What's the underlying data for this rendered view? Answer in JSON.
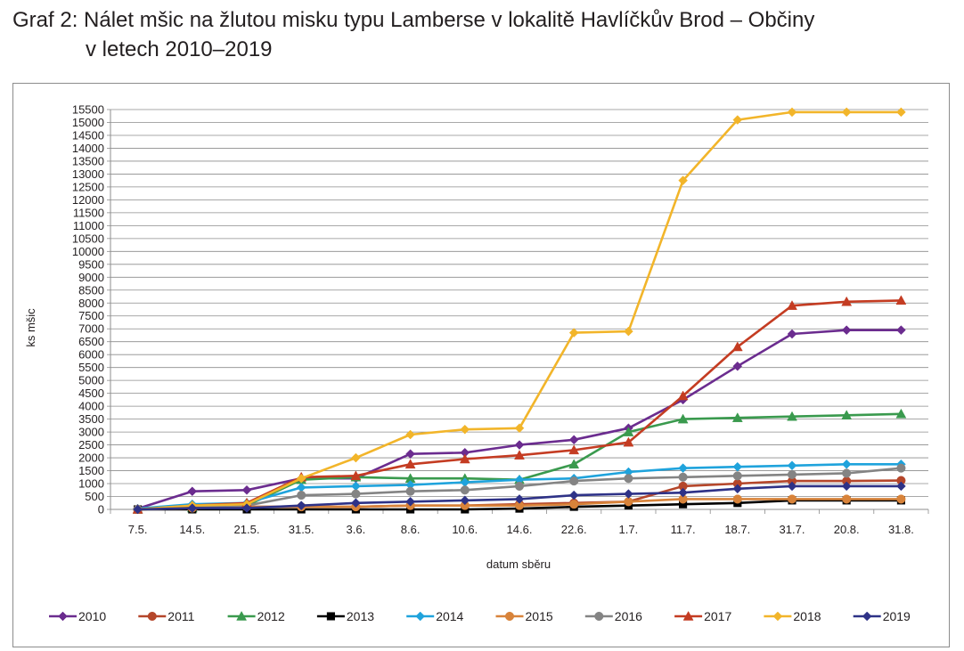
{
  "header": {
    "title_line1": "Graf 2: Nálet mšic na žlutou misku typu Lamberse v lokalitě Havlíčkův Brod – Občiny",
    "title_line2": "v letech 2010–2019"
  },
  "chart_data": {
    "type": "line",
    "title": "Graf 2: Nálet mšic na žlutou misku typu Lamberse v lokalitě Havlíčkův Brod – Občiny v letech 2010–2019",
    "xlabel": "datum sběru",
    "ylabel": "ks mšic",
    "ylim": [
      0,
      15500
    ],
    "ytick_step": 500,
    "grid": true,
    "legend_position": "bottom",
    "categories": [
      "7.5.",
      "14.5.",
      "21.5.",
      "31.5.",
      "3.6.",
      "8.6.",
      "10.6.",
      "14.6.",
      "22.6.",
      "1.7.",
      "11.7.",
      "18.7.",
      "31.7.",
      "20.8.",
      "31.8."
    ],
    "series": [
      {
        "name": "2010",
        "color": "#6b2c8f",
        "marker": "diamond",
        "values": [
          30,
          700,
          750,
          1200,
          1200,
          2150,
          2200,
          2500,
          2700,
          3150,
          4250,
          5550,
          6800,
          6950,
          6950
        ]
      },
      {
        "name": "2011",
        "color": "#b5462a",
        "marker": "circle",
        "values": [
          0,
          50,
          100,
          100,
          100,
          150,
          150,
          200,
          250,
          300,
          900,
          1000,
          1100,
          1100,
          1120
        ]
      },
      {
        "name": "2012",
        "color": "#3a9a4e",
        "marker": "triangle",
        "values": [
          0,
          50,
          150,
          1150,
          1250,
          1200,
          1200,
          1150,
          1750,
          3000,
          3500,
          3550,
          3600,
          3650,
          3700
        ]
      },
      {
        "name": "2013",
        "color": "#000000",
        "marker": "square",
        "values": [
          0,
          0,
          0,
          0,
          0,
          0,
          0,
          30,
          100,
          150,
          200,
          250,
          350,
          350,
          350
        ]
      },
      {
        "name": "2014",
        "color": "#1fa3dc",
        "marker": "diamond",
        "values": [
          30,
          200,
          250,
          850,
          900,
          950,
          1050,
          1150,
          1200,
          1450,
          1600,
          1650,
          1700,
          1750,
          1750
        ]
      },
      {
        "name": "2015",
        "color": "#d8833a",
        "marker": "circle",
        "values": [
          0,
          50,
          100,
          100,
          100,
          150,
          150,
          150,
          200,
          300,
          400,
          400,
          400,
          400,
          400
        ]
      },
      {
        "name": "2016",
        "color": "#848484",
        "marker": "circle",
        "values": [
          0,
          100,
          150,
          550,
          600,
          700,
          750,
          900,
          1100,
          1200,
          1250,
          1300,
          1350,
          1400,
          1600
        ]
      },
      {
        "name": "2017",
        "color": "#c43c22",
        "marker": "triangle",
        "values": [
          0,
          150,
          250,
          1250,
          1300,
          1750,
          1950,
          2100,
          2300,
          2600,
          4400,
          6300,
          7900,
          8050,
          8100
        ]
      },
      {
        "name": "2018",
        "color": "#f2b52a",
        "marker": "diamond",
        "values": [
          0,
          150,
          200,
          1200,
          2000,
          2900,
          3100,
          3150,
          6850,
          6900,
          12750,
          15100,
          15400,
          15400,
          15400
        ]
      },
      {
        "name": "2019",
        "color": "#2e3287",
        "marker": "diamond",
        "values": [
          0,
          50,
          50,
          150,
          250,
          300,
          350,
          400,
          550,
          600,
          650,
          800,
          900,
          900,
          900
        ]
      }
    ]
  }
}
